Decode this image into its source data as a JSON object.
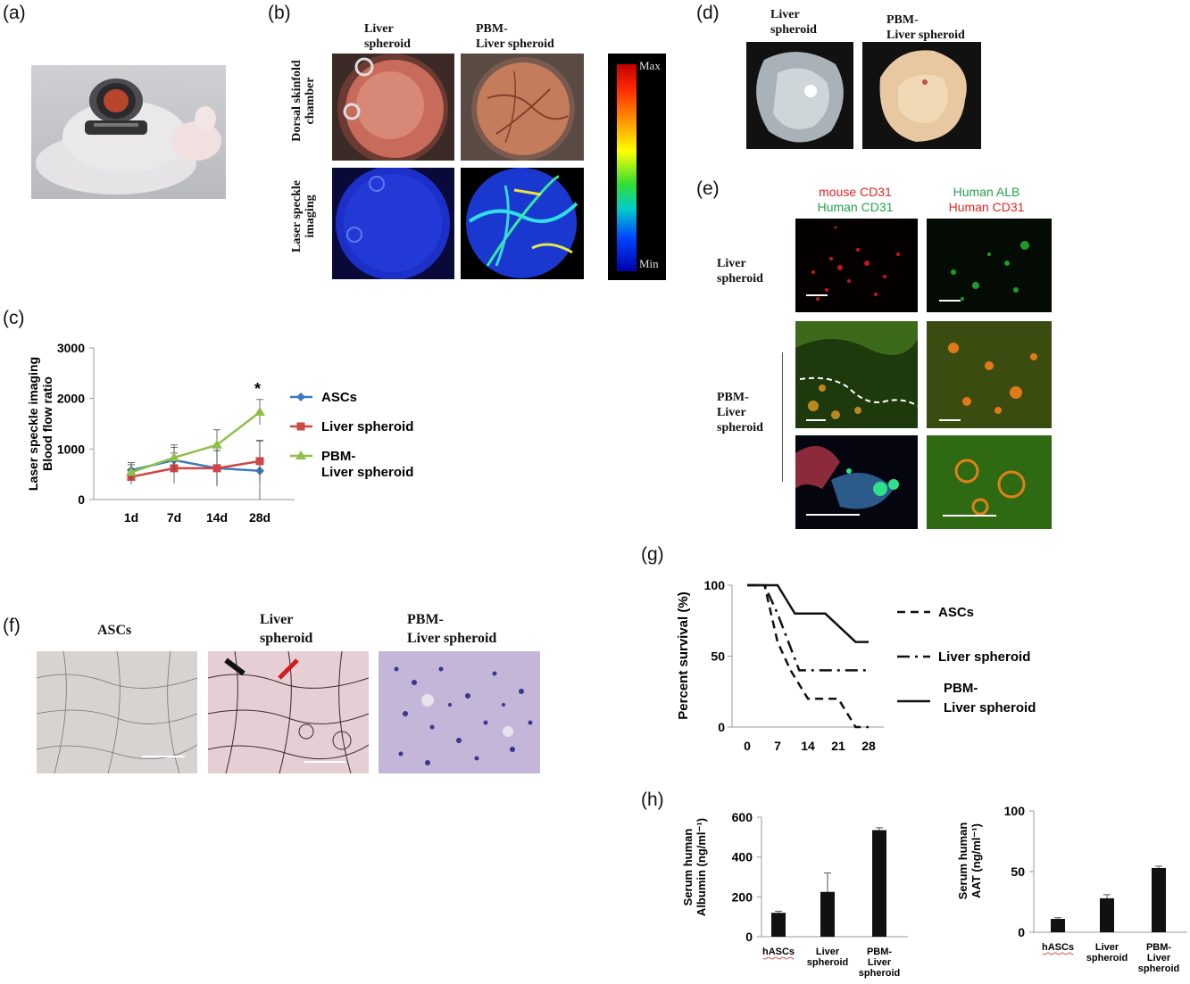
{
  "panels": {
    "a": {
      "label": "(a)"
    },
    "b": {
      "label": "(b)",
      "col1": "Liver\nspheroid",
      "col2": "PBM-\nLiver spheroid",
      "row1": "Dorsal skinfold\nchamber",
      "row2": "Laser speckle\nimaging",
      "scale_max": "Max",
      "scale_min": "Min"
    },
    "c": {
      "label": "(c)"
    },
    "d": {
      "label": "(d)",
      "col1": "Liver\nspheroid",
      "col2": "PBM-\nLiver spheroid"
    },
    "e": {
      "label": "(e)",
      "col1_line1": "mouse CD31",
      "col1_line2": "Human CD31",
      "col2_line1": "Human ALB",
      "col2_line2": "Human CD31",
      "row1": "Liver\nspheroid",
      "row2": "PBM-\nLiver\nspheroid",
      "colors": {
        "red": "#e8231f",
        "green": "#22a34a"
      }
    },
    "f": {
      "label": "(f)",
      "col1": "ASCs",
      "col2": "Liver\nspheroid",
      "col3": "PBM-\nLiver spheroid"
    },
    "g": {
      "label": "(g)"
    },
    "h": {
      "label": "(h)"
    }
  },
  "chart_data": [
    {
      "id": "c",
      "type": "line",
      "ylabel": "Laser speckle imaging\nBlood flow ratio",
      "categories": [
        "1d",
        "7d",
        "14d",
        "28d"
      ],
      "ylim": [
        0,
        3000
      ],
      "yticks": [
        "0",
        "1000",
        "2000",
        "3000"
      ],
      "annotation": "*",
      "series": [
        {
          "name": "ASCs",
          "color": "#3b7bbf",
          "marker": "diamond",
          "values": [
            580,
            780,
            620,
            570
          ],
          "err": [
            150,
            250,
            350,
            600
          ]
        },
        {
          "name": "Liver spheroid",
          "color": "#d04545",
          "marker": "square",
          "values": [
            450,
            620,
            620,
            760
          ],
          "err": [
            150,
            300,
            350,
            400
          ]
        },
        {
          "name": "PBM-\nLiver spheroid",
          "color": "#8fbf4a",
          "marker": "triangle",
          "values": [
            540,
            830,
            1080,
            1730
          ],
          "err": [
            150,
            250,
            300,
            250
          ]
        }
      ]
    },
    {
      "id": "g",
      "type": "line",
      "ylabel": "Percent survival (%)",
      "xticks": [
        "0",
        "7",
        "14",
        "21",
        "28"
      ],
      "yticks": [
        "0",
        "50",
        "100"
      ],
      "ylim": [
        0,
        100
      ],
      "xlim": [
        0,
        28
      ],
      "series": [
        {
          "name": "ASCs",
          "style": "dashed",
          "points": [
            [
              0,
              100
            ],
            [
              4,
              100
            ],
            [
              7,
              60
            ],
            [
              10,
              40
            ],
            [
              14,
              20
            ],
            [
              21,
              20
            ],
            [
              25,
              0
            ],
            [
              28,
              0
            ]
          ]
        },
        {
          "name": "Liver spheroid",
          "style": "dashdot",
          "points": [
            [
              0,
              100
            ],
            [
              4,
              100
            ],
            [
              7,
              80
            ],
            [
              12,
              40
            ],
            [
              14,
              40
            ],
            [
              21,
              40
            ],
            [
              28,
              40
            ]
          ]
        },
        {
          "name": "PBM-\nLiver spheroid",
          "style": "solid",
          "points": [
            [
              0,
              100
            ],
            [
              7,
              100
            ],
            [
              11,
              80
            ],
            [
              18,
              80
            ],
            [
              25,
              60
            ],
            [
              28,
              60
            ]
          ]
        }
      ]
    },
    {
      "id": "h1",
      "type": "bar",
      "ylabel": "Serum human\nAlbumin (ng/ml⁻¹)",
      "categories": [
        "hASCs",
        "Liver\nspheroid",
        "PBM-\nLiver\nspheroid"
      ],
      "values": [
        120,
        225,
        535
      ],
      "err": [
        8,
        95,
        12
      ],
      "ylim": [
        0,
        600
      ],
      "yticks": [
        "0",
        "200",
        "400",
        "600"
      ]
    },
    {
      "id": "h2",
      "type": "bar",
      "ylabel": "Serum human\nAAT (ng/ml⁻¹)",
      "categories": [
        "hASCs",
        "Liver\nspheroid",
        "PBM-\nLiver\nspheroid"
      ],
      "values": [
        11,
        28,
        53
      ],
      "err": [
        1,
        3,
        1.5
      ],
      "ylim": [
        0,
        100
      ],
      "yticks": [
        "0",
        "50",
        "100"
      ]
    }
  ]
}
